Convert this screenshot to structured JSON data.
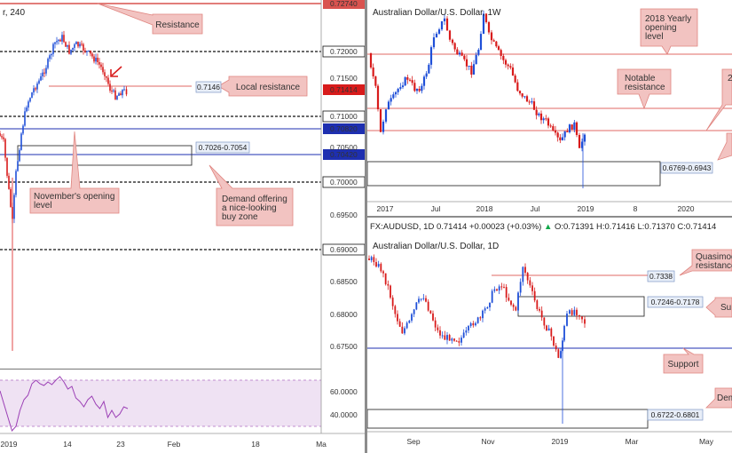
{
  "colors": {
    "bull": "#1f4fd8",
    "bear": "#d81b1b",
    "resistance": "#d9534f",
    "support": "#1e2fb0",
    "callout_fill": "#f2c3c1",
    "callout_stroke": "#e08580",
    "price_box": "#1d4ea0",
    "rsi_fill": "#e8d8f0",
    "rsi_line": "#9b3fb5"
  },
  "panels": [
    {
      "id": "h4",
      "title": "r, 240",
      "x_ticks": [
        "2019",
        "14",
        "23",
        "Feb",
        "18",
        "Ma"
      ],
      "price_ticks": [
        "0.72740",
        "0.72000",
        "0.71414",
        "0.71000",
        "0.70820",
        "0.70420",
        "0.70000",
        "0.69500",
        "0.69000",
        "0.68500",
        "0.68000",
        "0.67500"
      ],
      "hidden_ticks": [
        "0.71500",
        "0.70500"
      ],
      "rsi_ticks": [
        "60.0000",
        "40.0000"
      ],
      "callouts": [
        "Resistance",
        "Local resistance",
        "November's opening level",
        "Demand offering a nice-looking buy zone"
      ],
      "box_labels": [
        "0.7146",
        "0.7026-0.7054"
      ]
    },
    {
      "id": "weekly",
      "title": "Australian Dollar/U.S. Dollar, 1W",
      "x_ticks": [
        "2017",
        "Jul",
        "2018",
        "Jul",
        "2019",
        "8",
        "2020"
      ],
      "callouts": [
        "2018 Yearly opening level",
        "Notable resistance"
      ],
      "box_labels": [
        "0.6769-0.6943"
      ]
    },
    {
      "id": "daily",
      "title": "Australian Dollar/U.S. Dollar, 1D",
      "x_ticks": [
        "Sep",
        "Nov",
        "2019",
        "Mar",
        "May"
      ],
      "callouts": [
        "Quasimod resistance",
        "Su",
        "Support",
        "Dem"
      ],
      "box_labels": [
        "0.7338",
        "0.7246-0.7178",
        "0.6722-0.6801"
      ]
    }
  ],
  "daily_header": {
    "symbol": "FX:AUDUSD, 1D",
    "last": "0.71414",
    "change": "+0.00023 (+0.03%)",
    "open": "0.71391",
    "high": "0.71416",
    "low": "0.71370",
    "close": "0.71414"
  }
}
